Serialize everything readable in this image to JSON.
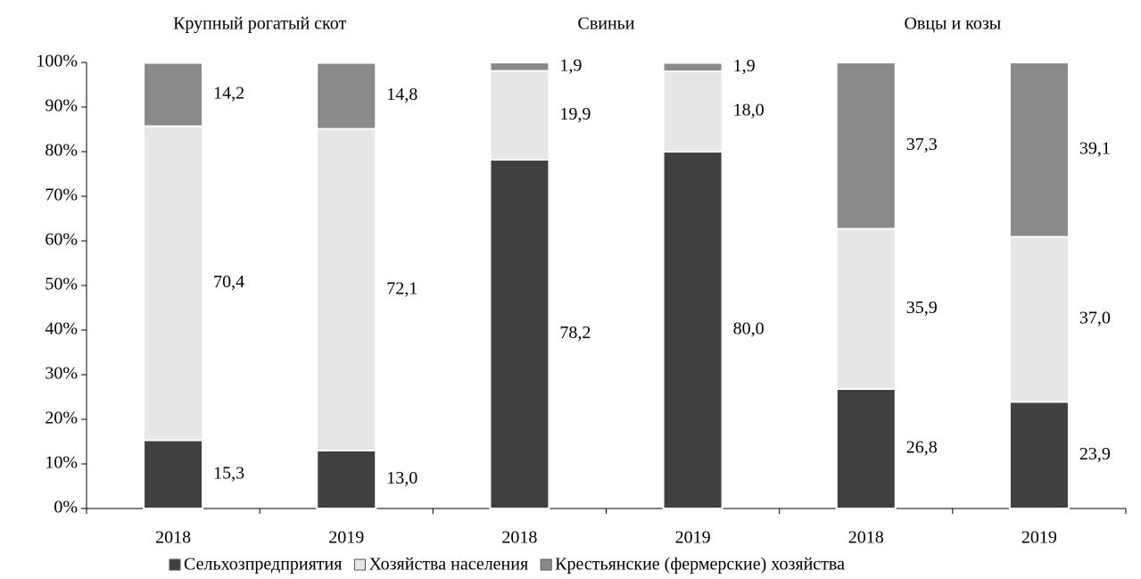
{
  "chart_data": {
    "type": "stacked_bar",
    "group_labels": [
      "Крупный рогатый скот",
      "Свиньи",
      "Овцы и козы"
    ],
    "categories": [
      "2018",
      "2019",
      "2018",
      "2019",
      "2018",
      "2019"
    ],
    "series": [
      {
        "name": "Сельхозпредприятия",
        "color": "#404040",
        "values": [
          15.3,
          13.0,
          78.2,
          80.0,
          26.8,
          23.9
        ],
        "value_labels": [
          "15,3",
          "13,0",
          "78,2",
          "80,0",
          "26,8",
          "23,9"
        ]
      },
      {
        "name": "Хозяйства населения",
        "color": "#e6e6e6",
        "values": [
          70.4,
          72.1,
          19.9,
          18.0,
          35.9,
          37.0
        ],
        "value_labels": [
          "70,4",
          "72,1",
          "19,9",
          "18,0",
          "35,9",
          "37,0"
        ]
      },
      {
        "name": "Крестьянские (фермерские) хозяйства",
        "color": "#8a8a8a",
        "values": [
          14.2,
          14.8,
          1.9,
          1.9,
          37.3,
          39.1
        ],
        "value_labels": [
          "14,2",
          "14,8",
          "1,9",
          "1,9",
          "37,3",
          "39,1"
        ]
      }
    ],
    "ylim": [
      0,
      100
    ],
    "yticks": [
      {
        "value": 0,
        "label": "0%"
      },
      {
        "value": 10,
        "label": "10%"
      },
      {
        "value": 20,
        "label": "20%"
      },
      {
        "value": 30,
        "label": "30%"
      },
      {
        "value": 40,
        "label": "40%"
      },
      {
        "value": 50,
        "label": "50%"
      },
      {
        "value": 60,
        "label": "60%"
      },
      {
        "value": 70,
        "label": "70%"
      },
      {
        "value": 80,
        "label": "80%"
      },
      {
        "value": 90,
        "label": "90%"
      },
      {
        "value": 100,
        "label": "100%"
      }
    ],
    "legend": "bottom"
  }
}
